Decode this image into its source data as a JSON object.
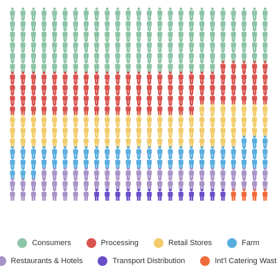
{
  "chart_data": {
    "type": "pictograph",
    "columns": 25,
    "rows": 20,
    "series": [
      {
        "name": "Consumers",
        "count": 145,
        "color": "#8dc4a6"
      },
      {
        "name": "Processing",
        "count": 98,
        "color": "#d9534f"
      },
      {
        "name": "Retail Stores",
        "count": 79,
        "color": "#f2cc6a"
      },
      {
        "name": "Farm",
        "count": 56,
        "color": "#5aaedf"
      },
      {
        "name": "Restaurants & Hotels",
        "count": 55,
        "color": "#a993c8"
      },
      {
        "name": "Transport Distribution",
        "count": 13,
        "color": "#6a4fc9"
      },
      {
        "name": "Int'l Catering Waste",
        "count": 4,
        "color": "#f26b3a"
      }
    ],
    "legend_position": "bottom"
  }
}
